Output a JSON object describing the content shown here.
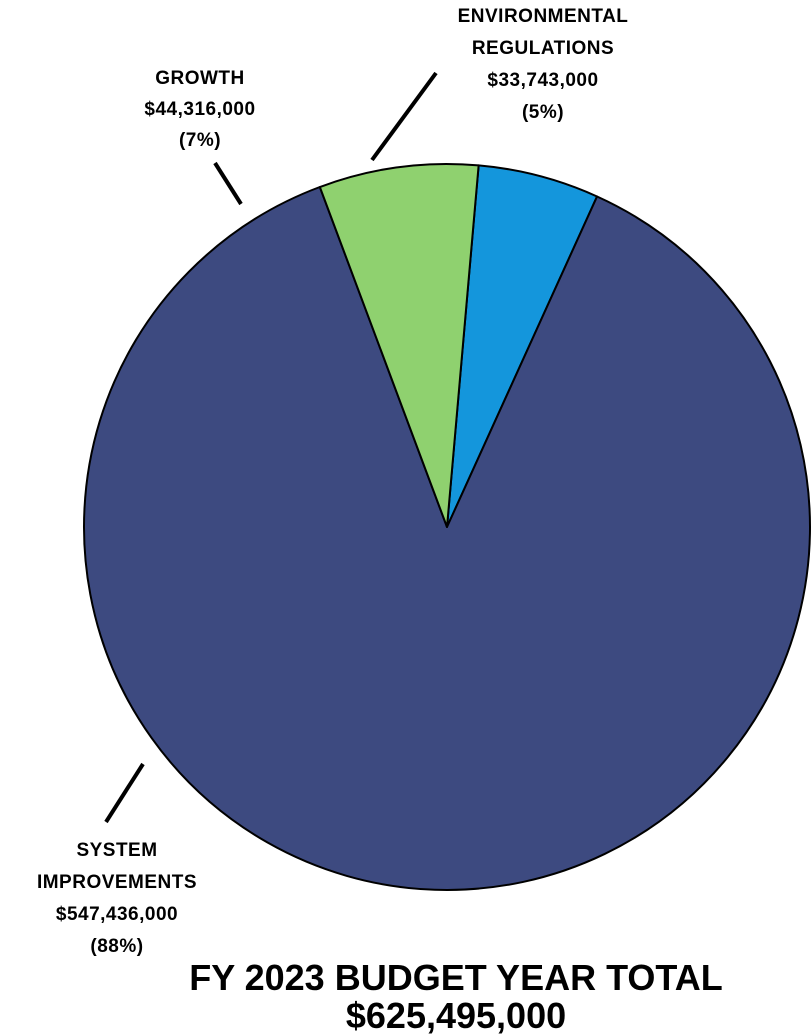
{
  "chart_data": {
    "type": "pie",
    "title": "FY 2023 BUDGET YEAR TOTAL",
    "total": "$625,495,000",
    "slices": [
      {
        "name": "system-improvements",
        "label": [
          "SYSTEM",
          "IMPROVEMENTS"
        ],
        "amount": "$547,436,000",
        "pct": "(88%)",
        "value": 547436000,
        "color": "#3d4a80"
      },
      {
        "name": "growth",
        "label": [
          "GROWTH"
        ],
        "amount": "$44,316,000",
        "pct": "(7%)",
        "value": 44316000,
        "color": "#8fd16f"
      },
      {
        "name": "environmental-regulations",
        "label": [
          "ENVIRONMENTAL",
          "REGULATIONS"
        ],
        "amount": "$33,743,000",
        "pct": "(5%)",
        "value": 33743000,
        "color": "#1496dc"
      }
    ]
  }
}
